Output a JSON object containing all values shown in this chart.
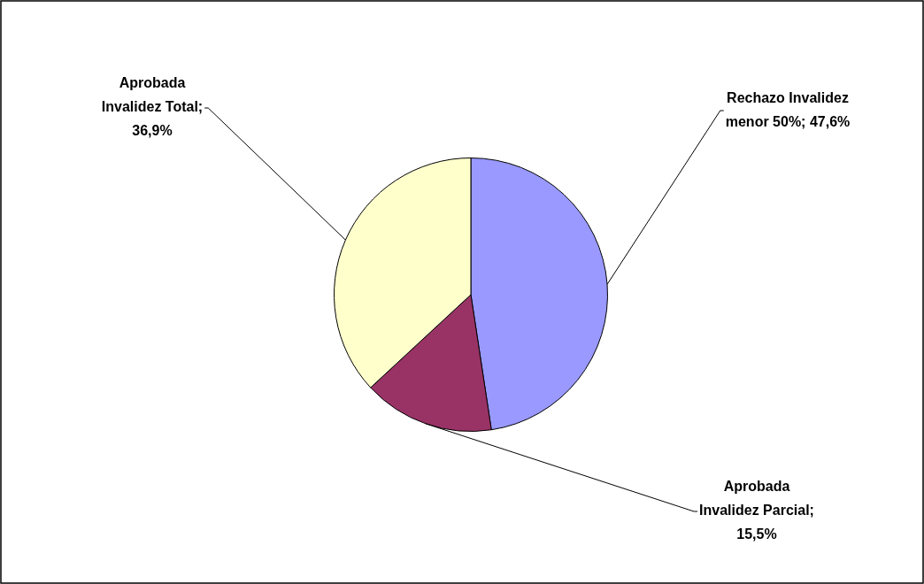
{
  "chart_data": {
    "type": "pie",
    "categories": [
      "Rechazo Invalidez menor 50%",
      "Aprobada Invalidez Parcial",
      "Aprobada Invalidez Total"
    ],
    "values": [
      47.6,
      15.5,
      36.9
    ],
    "colors": [
      "#9999ff",
      "#993366",
      "#ffffcc"
    ],
    "value_labels": [
      "; 47,6%",
      "; 15,5%",
      "; 36,9%"
    ],
    "legend": false
  }
}
